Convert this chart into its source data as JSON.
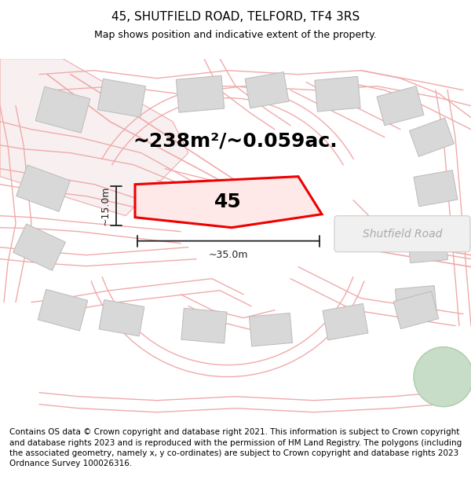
{
  "title": "45, SHUTFIELD ROAD, TELFORD, TF4 3RS",
  "subtitle": "Map shows position and indicative extent of the property.",
  "area_label": "~238m²/~0.059ac.",
  "label_45": "45",
  "road_label": "Shutfield Road",
  "dim_width": "~35.0m",
  "dim_height": "~15.0m",
  "footer": "Contains OS data © Crown copyright and database right 2021. This information is subject to Crown copyright and database rights 2023 and is reproduced with the permission of HM Land Registry. The polygons (including the associated geometry, namely x, y co-ordinates) are subject to Crown copyright and database rights 2023 Ordnance Survey 100026316.",
  "bg_color": "#ffffff",
  "map_bg": "#ffffff",
  "footer_bg": "#ffffff",
  "road_line_color": "#f0aaaa",
  "road_fill_color": "#f5e8e8",
  "building_fill": "#d8d8d8",
  "building_edge": "#bbbbbb",
  "plot_fill": "#ffe8e8",
  "plot_edge": "#ee0000",
  "dim_color": "#222222",
  "road_label_color": "#aaaaaa",
  "park_fill": "#c8ddc8",
  "park_edge": "#aaccaa",
  "title_fontsize": 11,
  "subtitle_fontsize": 9,
  "area_fontsize": 18,
  "label_fontsize": 18,
  "dim_fontsize": 9,
  "footer_fontsize": 7.5,
  "road_label_fontsize": 10
}
